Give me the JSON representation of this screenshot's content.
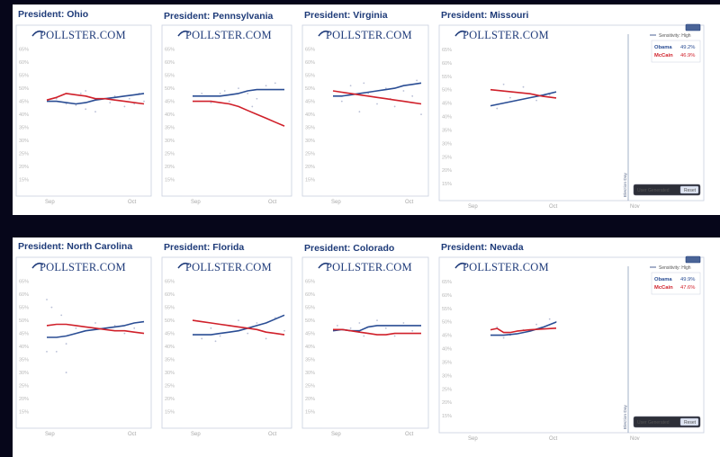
{
  "colors": {
    "obama": "#2a4d94",
    "mccain": "#d0202a",
    "dots": "#b9bfd6",
    "frame": "#1f3b7a"
  },
  "logo": "POLLSTER.COM",
  "ui": {
    "sensitivity": "Sensitivity: High",
    "user_generated": "User Generated",
    "reset": "Reset",
    "election_day": "Election Day"
  },
  "chart_data": [
    {
      "type": "line",
      "title": "President: Ohio",
      "x_ticks": [
        "Sep",
        "Oct"
      ],
      "y_ticks": [
        "65%",
        "60%",
        "55%",
        "50%",
        "45%",
        "40%",
        "35%",
        "30%",
        "25%",
        "20%",
        "15%"
      ],
      "ylim": [
        10,
        68
      ],
      "xlim": [
        0,
        10
      ],
      "series": [
        {
          "name": "Obama",
          "color": "#2a4d94",
          "x": [
            0,
            1,
            2,
            3,
            4,
            5,
            6,
            7,
            8,
            9,
            10
          ],
          "values": [
            45,
            45,
            44.5,
            44,
            44.5,
            45.5,
            46,
            46.5,
            47,
            47.5,
            48
          ]
        },
        {
          "name": "McCain",
          "color": "#d0202a",
          "x": [
            0,
            1,
            2,
            3,
            4,
            5,
            6,
            7,
            8,
            9,
            10
          ],
          "values": [
            45.5,
            46.5,
            48,
            47.5,
            47,
            46,
            46,
            45.5,
            45,
            44.5,
            44
          ]
        }
      ],
      "points": [
        [
          1,
          46
        ],
        [
          2,
          44
        ],
        [
          3,
          43.5
        ],
        [
          3.5,
          48
        ],
        [
          4,
          42
        ],
        [
          4.5,
          45
        ],
        [
          5,
          41
        ],
        [
          6,
          46
        ],
        [
          7,
          47
        ],
        [
          8,
          43
        ],
        [
          8.5,
          46
        ],
        [
          9,
          44
        ],
        [
          9.5,
          48
        ],
        [
          10,
          45
        ],
        [
          4,
          49
        ],
        [
          6.5,
          44.5
        ]
      ]
    },
    {
      "type": "line",
      "title": "President: Pennsylvania",
      "x_ticks": [
        "Sep",
        "Oct"
      ],
      "y_ticks": [
        "65%",
        "60%",
        "55%",
        "50%",
        "45%",
        "40%",
        "35%",
        "30%",
        "25%",
        "20%",
        "15%"
      ],
      "ylim": [
        10,
        68
      ],
      "xlim": [
        0,
        10
      ],
      "series": [
        {
          "name": "Obama",
          "color": "#2a4d94",
          "x": [
            0,
            1,
            2,
            3,
            4,
            5,
            6,
            7,
            8,
            9,
            10
          ],
          "values": [
            47,
            47,
            47,
            47,
            47.5,
            48,
            49,
            49.5,
            49.5,
            49.5,
            49.5
          ]
        },
        {
          "name": "McCain",
          "color": "#d0202a",
          "x": [
            0,
            1,
            2,
            3,
            4,
            5,
            6,
            7,
            8,
            9,
            10
          ],
          "values": [
            45,
            45,
            45,
            44.5,
            44,
            43,
            41.5,
            40,
            38.5,
            37,
            35.5
          ]
        }
      ],
      "points": [
        [
          1,
          48
        ],
        [
          2,
          44.5
        ],
        [
          3,
          48
        ],
        [
          4,
          45
        ],
        [
          5,
          50
        ],
        [
          6,
          48
        ],
        [
          7,
          46
        ],
        [
          8,
          51
        ],
        [
          9,
          52
        ],
        [
          3.5,
          49
        ],
        [
          6.5,
          43
        ]
      ]
    },
    {
      "type": "line",
      "title": "President: Virginia",
      "x_ticks": [
        "Sep",
        "Oct"
      ],
      "y_ticks": [
        "65%",
        "60%",
        "55%",
        "50%",
        "45%",
        "40%",
        "35%",
        "30%",
        "25%",
        "20%",
        "15%"
      ],
      "ylim": [
        10,
        68
      ],
      "xlim": [
        0,
        10
      ],
      "series": [
        {
          "name": "Obama",
          "color": "#2a4d94",
          "x": [
            0,
            1,
            2,
            3,
            4,
            5,
            6,
            7,
            8,
            9,
            10
          ],
          "values": [
            47,
            47,
            47.5,
            48,
            48.5,
            49,
            49.5,
            50,
            51,
            51.5,
            52
          ]
        },
        {
          "name": "McCain",
          "color": "#d0202a",
          "x": [
            0,
            1,
            2,
            3,
            4,
            5,
            6,
            7,
            8,
            9,
            10
          ],
          "values": [
            49,
            48.5,
            48,
            47.5,
            47,
            46.5,
            46,
            45.5,
            45,
            44.5,
            44
          ]
        }
      ],
      "points": [
        [
          1,
          45
        ],
        [
          2,
          51
        ],
        [
          3,
          41
        ],
        [
          4,
          48
        ],
        [
          5,
          44
        ],
        [
          6,
          50
        ],
        [
          7,
          43
        ],
        [
          8,
          49
        ],
        [
          9,
          47
        ],
        [
          10,
          40
        ],
        [
          3.5,
          52
        ],
        [
          6.5,
          46
        ],
        [
          9.5,
          53
        ]
      ]
    },
    {
      "type": "line",
      "title": "President: Missouri",
      "x_ticks": [
        "Sep",
        "Oct",
        "Nov"
      ],
      "y_ticks": [
        "65%",
        "60%",
        "55%",
        "50%",
        "45%",
        "40%",
        "35%",
        "30%",
        "25%",
        "20%",
        "15%"
      ],
      "ylim": [
        10,
        68
      ],
      "xlim": [
        0,
        20
      ],
      "legend": [
        {
          "name": "Obama",
          "value": "49.2%"
        },
        {
          "name": "McCain",
          "value": "46.9%"
        }
      ],
      "series": [
        {
          "name": "Obama",
          "color": "#2a4d94",
          "x": [
            0,
            2,
            4,
            6,
            8,
            10
          ],
          "values": [
            44,
            45,
            46,
            47,
            48,
            49.2
          ]
        },
        {
          "name": "McCain",
          "color": "#d0202a",
          "x": [
            0,
            2,
            4,
            6,
            8,
            10
          ],
          "values": [
            50,
            49.5,
            49,
            48.5,
            47.5,
            46.9
          ]
        }
      ],
      "points": [
        [
          1,
          43
        ],
        [
          3,
          47
        ],
        [
          5,
          51
        ],
        [
          7,
          46
        ],
        [
          9,
          48
        ],
        [
          2,
          52
        ]
      ]
    },
    {
      "type": "line",
      "title": "President: North Carolina",
      "x_ticks": [
        "Sep",
        "Oct"
      ],
      "y_ticks": [
        "65%",
        "60%",
        "55%",
        "50%",
        "45%",
        "40%",
        "35%",
        "30%",
        "25%",
        "20%",
        "15%"
      ],
      "ylim": [
        10,
        68
      ],
      "xlim": [
        0,
        10
      ],
      "series": [
        {
          "name": "Obama",
          "color": "#2a4d94",
          "x": [
            0,
            1,
            2,
            3,
            4,
            5,
            6,
            7,
            8,
            9,
            10
          ],
          "values": [
            43.5,
            43.5,
            44,
            45,
            46,
            46.5,
            47,
            47.5,
            48,
            49,
            49.5
          ]
        },
        {
          "name": "McCain",
          "color": "#d0202a",
          "x": [
            0,
            1,
            2,
            3,
            4,
            5,
            6,
            7,
            8,
            9,
            10
          ],
          "values": [
            48,
            48.5,
            48.5,
            48,
            47.5,
            47,
            46.5,
            46,
            46,
            45.5,
            45
          ]
        }
      ],
      "points": [
        [
          0,
          58
        ],
        [
          0.5,
          55
        ],
        [
          0,
          38
        ],
        [
          1,
          38
        ],
        [
          2,
          41
        ],
        [
          1.5,
          52
        ],
        [
          2,
          30
        ],
        [
          3,
          47
        ],
        [
          5,
          49
        ],
        [
          7,
          48
        ],
        [
          9,
          47
        ],
        [
          8,
          45
        ]
      ]
    },
    {
      "type": "line",
      "title": "President: Florida",
      "x_ticks": [
        "Sep",
        "Oct"
      ],
      "y_ticks": [
        "65%",
        "60%",
        "55%",
        "50%",
        "45%",
        "40%",
        "35%",
        "30%",
        "25%",
        "20%",
        "15%"
      ],
      "ylim": [
        10,
        68
      ],
      "xlim": [
        0,
        10
      ],
      "series": [
        {
          "name": "Obama",
          "color": "#2a4d94",
          "x": [
            0,
            1,
            2,
            3,
            4,
            5,
            6,
            7,
            8,
            9,
            10
          ],
          "values": [
            44.5,
            44.5,
            44.5,
            45,
            45.5,
            46,
            47,
            48,
            49,
            50.5,
            52
          ]
        },
        {
          "name": "McCain",
          "color": "#d0202a",
          "x": [
            0,
            1,
            2,
            3,
            4,
            5,
            6,
            7,
            8,
            9,
            10
          ],
          "values": [
            50,
            49.5,
            49,
            48.5,
            48,
            47.5,
            47,
            46.5,
            45.5,
            45,
            44.5
          ]
        }
      ],
      "points": [
        [
          1,
          43
        ],
        [
          2,
          47
        ],
        [
          3,
          44
        ],
        [
          4,
          48
        ],
        [
          5,
          50
        ],
        [
          6,
          45
        ],
        [
          7,
          49
        ],
        [
          8,
          43
        ],
        [
          9,
          51
        ],
        [
          10,
          46
        ],
        [
          2.5,
          42
        ]
      ]
    },
    {
      "type": "line",
      "title": "President: Colorado",
      "x_ticks": [
        "Sep",
        "Oct"
      ],
      "y_ticks": [
        "65%",
        "60%",
        "55%",
        "50%",
        "45%",
        "40%",
        "35%",
        "30%",
        "25%",
        "20%",
        "15%"
      ],
      "ylim": [
        10,
        68
      ],
      "xlim": [
        0,
        10
      ],
      "series": [
        {
          "name": "Obama",
          "color": "#2a4d94",
          "x": [
            0,
            1,
            2,
            3,
            4,
            5,
            6,
            7,
            8,
            9,
            10
          ],
          "values": [
            46,
            46.5,
            46,
            46,
            47.5,
            48,
            48,
            48,
            48,
            48,
            48
          ]
        },
        {
          "name": "McCain",
          "color": "#d0202a",
          "x": [
            0,
            1,
            2,
            3,
            4,
            5,
            6,
            7,
            8,
            9,
            10
          ],
          "values": [
            46.5,
            46.5,
            46,
            45.5,
            45,
            44.5,
            44.5,
            45,
            45,
            45,
            45
          ]
        }
      ],
      "points": [
        [
          0.5,
          48
        ],
        [
          2,
          47
        ],
        [
          3,
          49
        ],
        [
          4,
          45
        ],
        [
          5,
          50
        ],
        [
          6,
          47
        ],
        [
          7,
          44
        ],
        [
          8,
          49
        ],
        [
          9,
          46
        ],
        [
          3.5,
          44
        ]
      ]
    },
    {
      "type": "line",
      "title": "President: Nevada",
      "x_ticks": [
        "Sep",
        "Oct",
        "Nov"
      ],
      "y_ticks": [
        "65%",
        "60%",
        "55%",
        "50%",
        "45%",
        "40%",
        "35%",
        "30%",
        "25%",
        "20%",
        "15%"
      ],
      "ylim": [
        10,
        68
      ],
      "xlim": [
        0,
        20
      ],
      "legend": [
        {
          "name": "Obama",
          "value": "49.9%"
        },
        {
          "name": "McCain",
          "value": "47.6%"
        }
      ],
      "series": [
        {
          "name": "Obama",
          "color": "#2a4d94",
          "x": [
            0,
            2,
            4,
            6,
            8,
            10
          ],
          "values": [
            45,
            45,
            45.5,
            46.5,
            48,
            49.9
          ]
        },
        {
          "name": "McCain",
          "color": "#d0202a",
          "x": [
            0,
            1,
            2,
            3,
            4,
            6,
            8,
            10
          ],
          "values": [
            47,
            47.5,
            46,
            46,
            46.5,
            47,
            47.3,
            47.6
          ]
        }
      ],
      "points": [
        [
          1,
          48
        ],
        [
          3,
          45
        ],
        [
          5,
          47
        ],
        [
          7,
          49
        ],
        [
          9,
          51
        ],
        [
          10,
          50
        ],
        [
          2,
          44
        ]
      ]
    }
  ]
}
